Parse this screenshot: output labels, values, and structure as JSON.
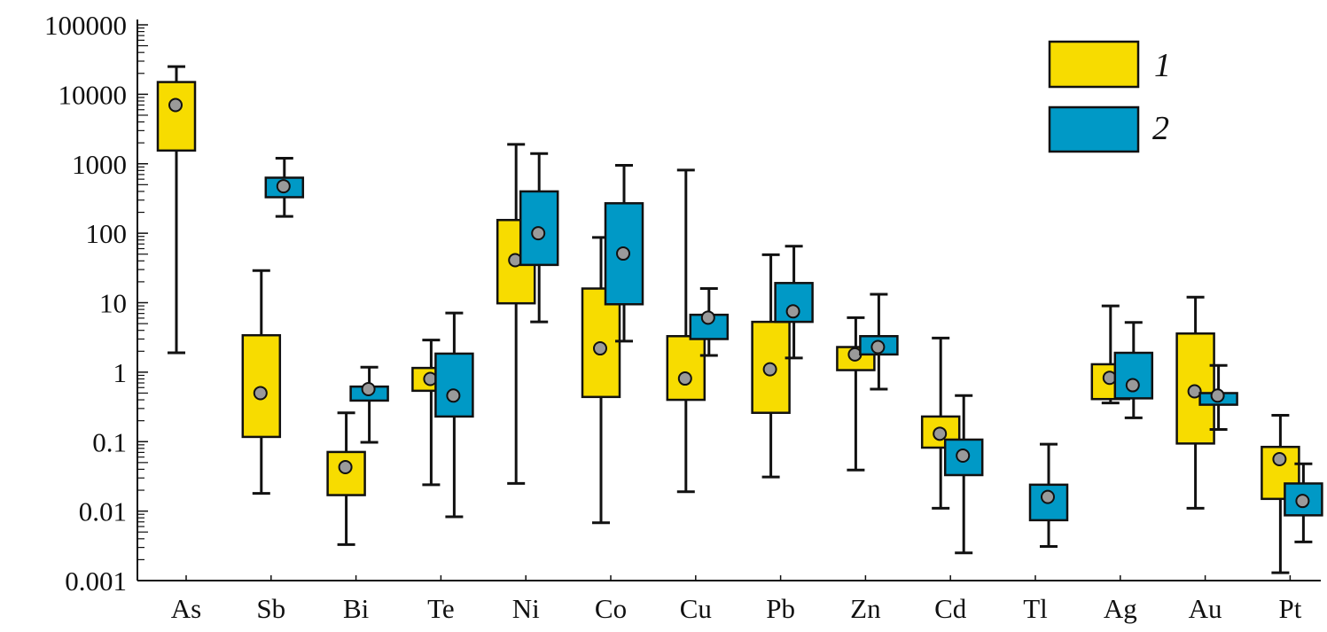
{
  "chart_data": {
    "type": "box",
    "title": "",
    "xlabel": "",
    "ylabel": "",
    "yscale": "log",
    "ylim": [
      0.001,
      100000
    ],
    "yticks": [
      "0.001",
      "0.01",
      "0.1",
      "1",
      "10",
      "100",
      "1000",
      "10000",
      "100000"
    ],
    "categories": [
      "As",
      "Sb",
      "Bi",
      "Te",
      "Ni",
      "Co",
      "Cu",
      "Pb",
      "Zn",
      "Cd",
      "Tl",
      "Ag",
      "Au",
      "Pt"
    ],
    "legend_position": "top-right",
    "colors": {
      "1": "#F7DC00",
      "2": "#0099C6",
      "median": "#9A9A9A"
    },
    "series": [
      {
        "name": "1",
        "boxes": [
          {
            "min": 1.9,
            "q1": 1550,
            "median": 7000,
            "q3": 15000,
            "max": 25000
          },
          {
            "min": 0.018,
            "q1": 0.117,
            "median": 0.5,
            "q3": 3.4,
            "max": 29
          },
          {
            "min": 0.0033,
            "q1": 0.017,
            "median": 0.043,
            "q3": 0.071,
            "max": 0.26
          },
          {
            "min": 0.024,
            "q1": 0.54,
            "median": 0.8,
            "q3": 1.15,
            "max": 2.9
          },
          {
            "min": 0.025,
            "q1": 9.8,
            "median": 41,
            "q3": 155,
            "max": 1900
          },
          {
            "min": 0.0068,
            "q1": 0.44,
            "median": 2.2,
            "q3": 16,
            "max": 87
          },
          {
            "min": 0.019,
            "q1": 0.4,
            "median": 0.81,
            "q3": 3.3,
            "max": 810
          },
          {
            "min": 0.031,
            "q1": 0.26,
            "median": 1.1,
            "q3": 5.3,
            "max": 49
          },
          {
            "min": 0.039,
            "q1": 1.07,
            "median": 1.8,
            "q3": 2.3,
            "max": 6.1
          },
          {
            "min": 0.011,
            "q1": 0.082,
            "median": 0.13,
            "q3": 0.23,
            "max": 3.1
          },
          null,
          {
            "min": 0.36,
            "q1": 0.41,
            "median": 0.83,
            "q3": 1.3,
            "max": 9
          },
          {
            "min": 0.011,
            "q1": 0.094,
            "median": 0.53,
            "q3": 3.6,
            "max": 12
          },
          {
            "min": 0.0013,
            "q1": 0.015,
            "median": 0.056,
            "q3": 0.084,
            "max": 0.24
          }
        ]
      },
      {
        "name": "2",
        "boxes": [
          null,
          {
            "min": 175,
            "q1": 330,
            "median": 475,
            "q3": 630,
            "max": 1200
          },
          {
            "min": 0.098,
            "q1": 0.39,
            "median": 0.57,
            "q3": 0.62,
            "max": 1.18
          },
          {
            "min": 0.0083,
            "q1": 0.23,
            "median": 0.46,
            "q3": 1.85,
            "max": 7.1
          },
          {
            "min": 5.3,
            "q1": 35,
            "median": 100,
            "q3": 400,
            "max": 1400
          },
          {
            "min": 2.8,
            "q1": 9.5,
            "median": 51,
            "q3": 270,
            "max": 950
          },
          {
            "min": 1.74,
            "q1": 3.0,
            "median": 6.1,
            "q3": 6.7,
            "max": 16
          },
          {
            "min": 1.6,
            "q1": 5.3,
            "median": 7.5,
            "q3": 19.2,
            "max": 65
          },
          {
            "min": 0.57,
            "q1": 1.8,
            "median": 2.3,
            "q3": 3.3,
            "max": 13.2
          },
          {
            "min": 0.0025,
            "q1": 0.033,
            "median": 0.063,
            "q3": 0.107,
            "max": 0.46
          },
          {
            "min": 0.0031,
            "q1": 0.0074,
            "median": 0.016,
            "q3": 0.024,
            "max": 0.092
          },
          {
            "min": 0.22,
            "q1": 0.42,
            "median": 0.65,
            "q3": 1.9,
            "max": 5.2
          },
          {
            "min": 0.15,
            "q1": 0.34,
            "median": 0.46,
            "q3": 0.5,
            "max": 1.25
          },
          {
            "min": 0.0036,
            "q1": 0.0087,
            "median": 0.014,
            "q3": 0.025,
            "max": 0.048
          }
        ]
      }
    ]
  }
}
